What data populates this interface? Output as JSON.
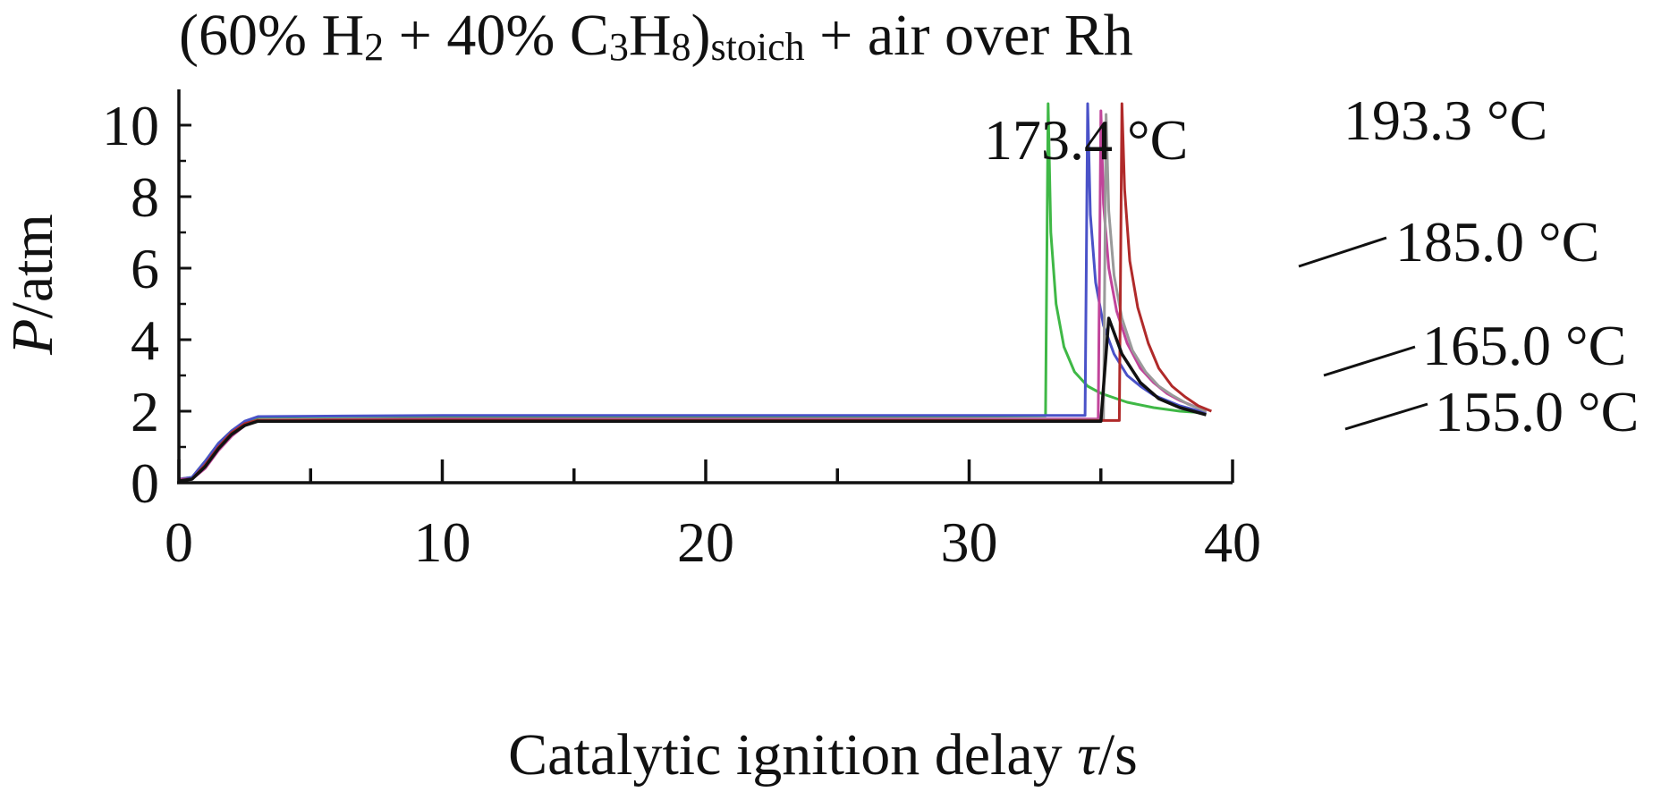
{
  "title": {
    "prefix": "(60% H",
    "sub1": "2",
    "mid1": " + 40% C",
    "sub2": "3",
    "mid2": "H",
    "sub3": "8",
    "mid3": ")",
    "sub4": "stoich",
    "suffix": " + air over Rh"
  },
  "chart_data": {
    "type": "line",
    "title": "(60% H2 + 40% C3H8)stoich + air over Rh",
    "xlabel": "Catalytic ignition delay τ/s",
    "ylabel": "P/atm",
    "xlim": [
      0,
      40
    ],
    "ylim": [
      0,
      11
    ],
    "x_ticks": [
      0,
      10,
      20,
      30,
      40
    ],
    "x_minor_ticks": [
      5,
      15,
      25,
      35
    ],
    "y_ticks": [
      0,
      2,
      4,
      6,
      8,
      10
    ],
    "grid": false,
    "legend": "none",
    "series": [
      {
        "name": "173.4 °C",
        "color": "#3fb846",
        "ignition_time": 33.0,
        "peak": 10.6,
        "plateau": 1.85,
        "x": [
          0,
          0.5,
          1.0,
          1.5,
          2.0,
          2.5,
          3.0,
          5,
          10,
          20,
          30,
          32.9,
          33.0,
          33.1,
          33.3,
          33.6,
          34.0,
          34.5,
          35.0,
          36,
          37,
          38,
          39
        ],
        "y": [
          0.1,
          0.15,
          0.6,
          1.1,
          1.45,
          1.7,
          1.83,
          1.84,
          1.85,
          1.85,
          1.86,
          1.87,
          10.6,
          7.0,
          5.0,
          3.8,
          3.1,
          2.7,
          2.5,
          2.25,
          2.1,
          2.0,
          1.95
        ]
      },
      {
        "name": "185.0 °C",
        "color": "#4a52c8",
        "ignition_time": 34.5,
        "peak": 10.6,
        "plateau": 1.88,
        "x": [
          0,
          0.5,
          1.0,
          1.5,
          2.0,
          2.5,
          3.0,
          5,
          10,
          20,
          30,
          34.4,
          34.5,
          34.6,
          34.8,
          35.1,
          35.5,
          36.0,
          36.5,
          37,
          38,
          39
        ],
        "y": [
          0.1,
          0.15,
          0.6,
          1.1,
          1.45,
          1.72,
          1.85,
          1.86,
          1.88,
          1.88,
          1.88,
          1.88,
          10.6,
          7.5,
          5.6,
          4.4,
          3.6,
          3.0,
          2.7,
          2.45,
          2.15,
          1.95
        ]
      },
      {
        "name": "165.0 °C",
        "color": "#c1449a",
        "ignition_time": 35.0,
        "peak": 10.4,
        "plateau": 1.78,
        "x": [
          0,
          0.5,
          1.0,
          1.5,
          2.0,
          2.5,
          3.0,
          5,
          10,
          20,
          30,
          34.9,
          35.0,
          35.1,
          35.3,
          35.6,
          36.0,
          36.5,
          37.0,
          37.5,
          38,
          39
        ],
        "y": [
          0.1,
          0.1,
          0.4,
          0.9,
          1.3,
          1.6,
          1.75,
          1.76,
          1.78,
          1.78,
          1.78,
          1.78,
          10.4,
          7.8,
          6.0,
          4.8,
          3.9,
          3.2,
          2.8,
          2.5,
          2.3,
          2.0
        ]
      },
      {
        "name": "155.0 °C",
        "color": "#9a9a9a",
        "ignition_time": 35.2,
        "peak": 10.3,
        "plateau": 1.75,
        "x": [
          0,
          0.5,
          1.0,
          1.5,
          2.0,
          2.5,
          3.0,
          5,
          10,
          20,
          30,
          35.1,
          35.2,
          35.3,
          35.5,
          35.8,
          36.2,
          36.7,
          37.2,
          37.7,
          38.3,
          39
        ],
        "y": [
          0.05,
          0.1,
          0.45,
          0.95,
          1.35,
          1.62,
          1.74,
          1.74,
          1.75,
          1.75,
          1.75,
          1.75,
          10.3,
          7.6,
          5.8,
          4.6,
          3.7,
          3.1,
          2.7,
          2.45,
          2.2,
          2.0
        ]
      },
      {
        "name": "193.3 °C",
        "color": "#b02a2a",
        "ignition_time": 35.8,
        "peak": 10.6,
        "plateau": 1.74,
        "x": [
          0,
          0.5,
          1.0,
          1.5,
          2.0,
          2.5,
          3.0,
          5,
          10,
          20,
          30,
          35.7,
          35.8,
          35.9,
          36.1,
          36.4,
          36.8,
          37.2,
          37.7,
          38.2,
          38.7,
          39.2
        ],
        "y": [
          0.05,
          0.1,
          0.5,
          1.0,
          1.4,
          1.65,
          1.75,
          1.75,
          1.75,
          1.74,
          1.74,
          1.74,
          10.6,
          8.2,
          6.2,
          4.9,
          3.9,
          3.2,
          2.7,
          2.4,
          2.15,
          2.0
        ]
      },
      {
        "name": "",
        "color": "#111111",
        "ignition_time": null,
        "plateau": 1.72,
        "x": [
          0,
          0.5,
          1.0,
          1.5,
          2.0,
          2.5,
          3.0,
          5,
          10,
          20,
          30,
          35.0,
          35.3,
          35.8,
          36.5,
          37.2,
          38,
          39
        ],
        "y": [
          0.05,
          0.1,
          0.45,
          0.95,
          1.35,
          1.6,
          1.72,
          1.72,
          1.72,
          1.72,
          1.72,
          1.72,
          4.6,
          3.6,
          2.8,
          2.35,
          2.1,
          1.9
        ]
      }
    ],
    "annotations": [
      {
        "text": "173.4 °C",
        "series": "173.4 °C"
      },
      {
        "text": "193.3 °C",
        "series": "193.3 °C"
      },
      {
        "text": "185.0 °C",
        "series": "185.0 °C"
      },
      {
        "text": "165.0 °C",
        "series": "165.0 °C"
      },
      {
        "text": "155.0 °C",
        "series": "155.0 °C"
      }
    ]
  },
  "axis": {
    "ylabel_italic": "P",
    "ylabel_rest": "/atm",
    "xlabel_prefix": "Catalytic ignition delay ",
    "xlabel_italic": "τ",
    "xlabel_suffix": "/s"
  }
}
